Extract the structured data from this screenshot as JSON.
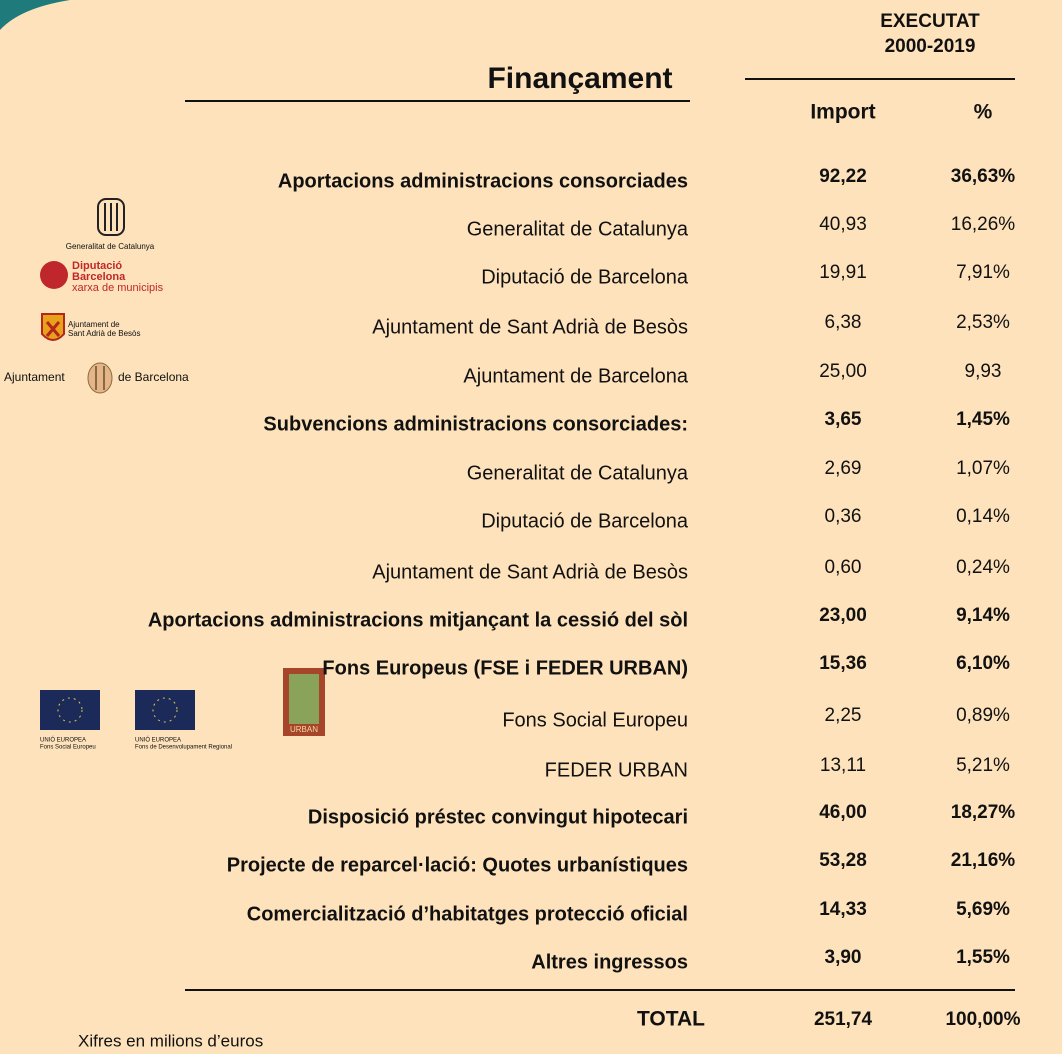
{
  "header": {
    "title": "Finançament",
    "period_label": "EXECUTAT",
    "period": "2000-2019"
  },
  "table": {
    "columns": [
      "Import",
      "%"
    ],
    "rows": [
      {
        "label": "Aportacions administracions consorciades",
        "import": "92,22",
        "pct": "36,63%",
        "bold": true
      },
      {
        "label": "Generalitat de Catalunya",
        "import": "40,93",
        "pct": "16,26%",
        "bold": false
      },
      {
        "label": "Diputació de Barcelona",
        "import": "19,91",
        "pct": "7,91%",
        "bold": false
      },
      {
        "label": "Ajuntament de Sant Adrià de Besòs",
        "import": "6,38",
        "pct": "2,53%",
        "bold": false
      },
      {
        "label": "Ajuntament de Barcelona",
        "import": "25,00",
        "pct": "9,93",
        "bold": false
      },
      {
        "label": "Subvencions administracions consorciades:",
        "import": "3,65",
        "pct": "1,45%",
        "bold": true
      },
      {
        "label": "Generalitat de Catalunya",
        "import": "2,69",
        "pct": "1,07%",
        "bold": false
      },
      {
        "label": "Diputació de Barcelona",
        "import": "0,36",
        "pct": "0,14%",
        "bold": false
      },
      {
        "label": "Ajuntament de Sant Adrià de Besòs",
        "import": "0,60",
        "pct": "0,24%",
        "bold": false
      },
      {
        "label": "Aportacions administracions mitjançant la cessió del sòl",
        "import": "23,00",
        "pct": "9,14%",
        "bold": true
      },
      {
        "label": "Fons  Europeus (FSE i FEDER URBAN)",
        "import": "15,36",
        "pct": "6,10%",
        "bold": true
      },
      {
        "label": "Fons Social Europeu",
        "import": "2,25",
        "pct": "0,89%",
        "bold": false
      },
      {
        "label": "FEDER URBAN",
        "import": "13,11",
        "pct": "5,21%",
        "bold": false
      },
      {
        "label": "Disposició préstec convingut hipotecari",
        "import": "46,00",
        "pct": "18,27%",
        "bold": true
      },
      {
        "label": "Projecte de reparcel·lació: Quotes urbanístiques",
        "import": "53,28",
        "pct": "21,16%",
        "bold": true
      },
      {
        "label": "Comercialització d’habitatges protecció oficial",
        "import": "14,33",
        "pct": "5,69%",
        "bold": true
      },
      {
        "label": "Altres ingressos",
        "import": "3,90",
        "pct": "1,55%",
        "bold": true
      }
    ],
    "total": {
      "label": "TOTAL",
      "import": "251,74",
      "pct": "100,00%"
    }
  },
  "logos": {
    "generalitat": "Generalitat de Catalunya",
    "diputacio": [
      "Diputació",
      "Barcelona",
      "xarxa de municipis"
    ],
    "sant_adria": [
      "Ajuntament de",
      "Sant Adrià de Besòs"
    ],
    "barcelona": [
      "Ajuntament",
      "de Barcelona"
    ],
    "fse": [
      "UNIÓ EUROPEA",
      "Fons Social Europeu"
    ],
    "feder": [
      "UNIÓ EUROPEA",
      "Fons de Desenvolupament Regional"
    ],
    "urban": "URBAN"
  },
  "footer": {
    "note": "Xifres en milions d’euros"
  }
}
